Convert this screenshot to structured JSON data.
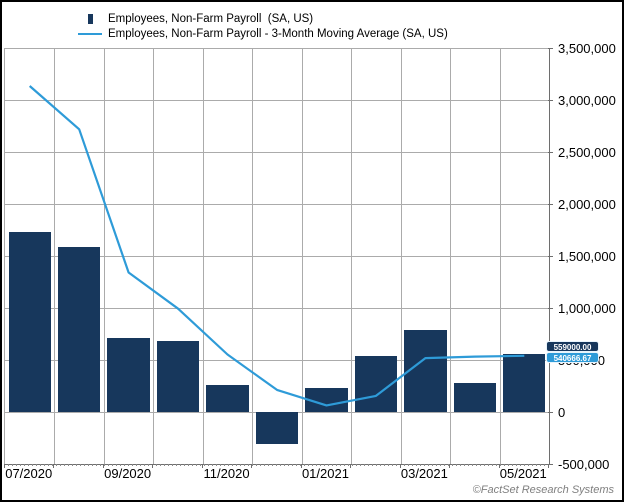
{
  "legend": {
    "items": [
      {
        "label": "Employees, Non-Farm Payroll  (SA, US)",
        "marker": "bar-marker",
        "color": "#17375c"
      },
      {
        "label": "Employees, Non-Farm Payroll - 3-Month Moving Average (SA, US)",
        "marker": "line-marker",
        "color": "#2e9bd8"
      }
    ]
  },
  "chart_data": {
    "type": "bar",
    "subtype": "bar-and-line-combo",
    "categories": [
      "07/2020",
      "08/2020",
      "09/2020",
      "10/2020",
      "11/2020",
      "12/2020",
      "01/2021",
      "02/2021",
      "03/2021",
      "04/2021",
      "05/2021"
    ],
    "series": [
      {
        "name": "Employees, Non-Farm Payroll (SA, US)",
        "type": "bar",
        "color": "#17375c",
        "values": [
          1726000,
          1583000,
          716000,
          680000,
          264000,
          -306000,
          233000,
          536000,
          785000,
          278000,
          559000
        ],
        "last_value_label": "559000.00"
      },
      {
        "name": "Employees, Non-Farm Payroll - 3-Month Moving Average (SA, US)",
        "type": "line",
        "color": "#2e9bd8",
        "values": [
          3135000,
          2718333,
          1341667,
          993000,
          553333,
          212667,
          63667,
          154333,
          518000,
          533000,
          540667
        ],
        "last_value_label": "540666.67"
      }
    ],
    "x_axis": {
      "tick_labels": [
        "07/2020",
        "09/2020",
        "11/2020",
        "01/2021",
        "03/2021",
        "05/2021"
      ],
      "label_every_n_months": 2
    },
    "y_axis": {
      "min": -500000,
      "max": 3500000,
      "tick_step": 500000,
      "tick_labels": [
        "3,500,000",
        "3,000,000",
        "2,500,000",
        "2,000,000",
        "1,500,000",
        "1,000,000",
        "500,000",
        "0",
        "-500,000"
      ]
    },
    "grid": true,
    "legend_position": "top-left",
    "ylim": [
      -500000,
      3500000
    ]
  },
  "badges": [
    {
      "text": "559000.00",
      "bg": "#17375c"
    },
    {
      "text": "540666.67",
      "bg": "#2e9bd8"
    }
  ],
  "footer": {
    "copyright": "©FactSet Research Systems"
  },
  "colors": {
    "bar": "#17375c",
    "line": "#2e9bd8",
    "grid": "#ababab",
    "axis": "#6e6e6e",
    "background": "#ffffff",
    "frame_border": "#000000",
    "badge_text": "#ffffff",
    "copyright_text": "#7f7f7f"
  }
}
